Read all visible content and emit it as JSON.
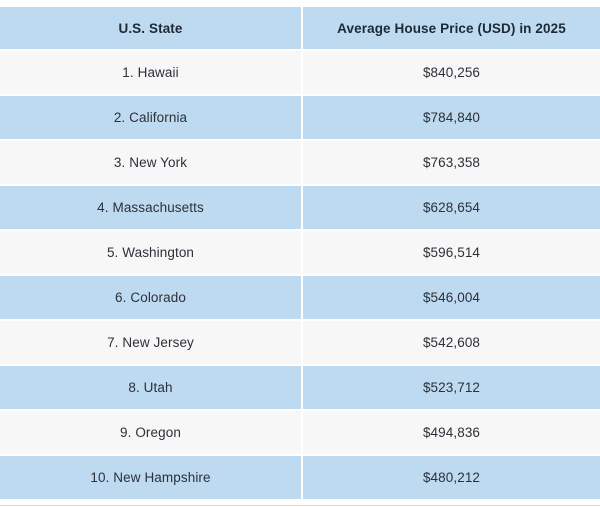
{
  "colors": {
    "header_bg": "#bedaf0",
    "row_alt_bg": "#bedaf0",
    "row_bg": "#f7f7f7",
    "separator": "#ffffff",
    "bottom_rule": "#d7d7d7",
    "header_text": "#1d2a36",
    "body_text": "#2c3038"
  },
  "chart_data": {
    "type": "table",
    "columns": [
      "U.S. State",
      "Average House Price (USD) in 2025"
    ],
    "rows": [
      [
        "1. Hawaii",
        "$840,256"
      ],
      [
        "2. California",
        "$784,840"
      ],
      [
        "3. New York",
        "$763,358"
      ],
      [
        "4. Massachusetts",
        "$628,654"
      ],
      [
        "5. Washington",
        "$596,514"
      ],
      [
        "6. Colorado",
        "$546,004"
      ],
      [
        "7. New Jersey",
        "$542,608"
      ],
      [
        "8. Utah",
        "$523,712"
      ],
      [
        "9. Oregon",
        "$494,836"
      ],
      [
        "10. New Hampshire",
        "$480,212"
      ]
    ],
    "states": [
      "Hawaii",
      "California",
      "New York",
      "Massachusetts",
      "Washington",
      "Colorado",
      "New Jersey",
      "Utah",
      "Oregon",
      "New Hampshire"
    ],
    "values_numeric": [
      840256,
      784840,
      763358,
      628654,
      596514,
      546004,
      542608,
      523712,
      494836,
      480212
    ],
    "layout": {
      "row_striping": "even ranks light blue, odd ranks light gray",
      "cell_alignment": "center",
      "legend_position": "none",
      "grid": "white 2px separators between rows and columns"
    }
  }
}
